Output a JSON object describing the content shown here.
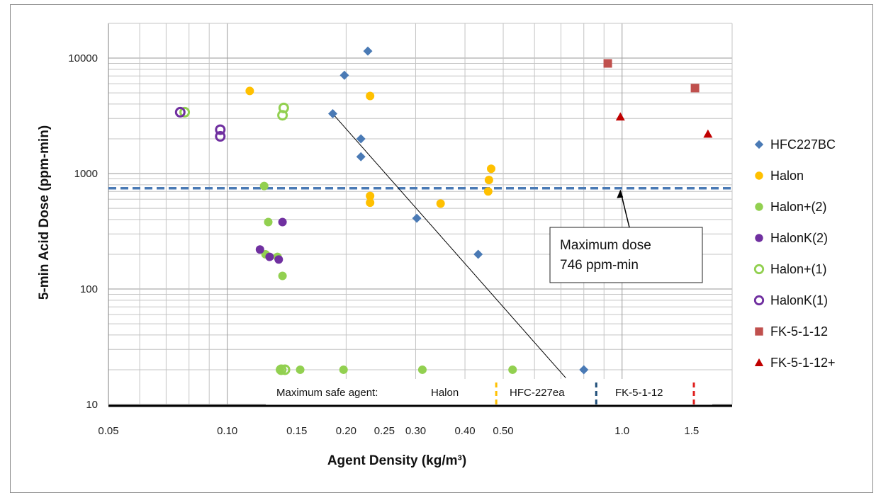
{
  "chart_data": {
    "type": "scatter",
    "title": "",
    "xlabel": "Agent Density (kg/m³)",
    "ylabel": "5-min Acid Dose (ppm-min)",
    "x_scale": "log",
    "y_scale": "log",
    "xlim": [
      0.05,
      1.9
    ],
    "ylim": [
      10,
      20000
    ],
    "x_ticks": [
      {
        "value": 0.05,
        "label": "0.05"
      },
      {
        "value": 0.1,
        "label": "0.10"
      },
      {
        "value": 0.15,
        "label": "0.15"
      },
      {
        "value": 0.2,
        "label": "0.20"
      },
      {
        "value": 0.25,
        "label": "0.25"
      },
      {
        "value": 0.3,
        "label": "0.30"
      },
      {
        "value": 0.4,
        "label": "0.40"
      },
      {
        "value": 0.5,
        "label": "0.50"
      },
      {
        "value": 1.0,
        "label": "1.0"
      },
      {
        "value": 1.5,
        "label": "1.5"
      }
    ],
    "y_ticks": [
      {
        "value": 10,
        "label": "10"
      },
      {
        "value": 100,
        "label": "100"
      },
      {
        "value": 1000,
        "label": "1000"
      },
      {
        "value": 10000,
        "label": "10000"
      }
    ],
    "grid": true,
    "legend_position": "right",
    "series": [
      {
        "name": "HFC227BC",
        "marker": "diamond",
        "filled": true,
        "color": "#4a7ab5",
        "points": [
          [
            0.185,
            3300
          ],
          [
            0.198,
            7100
          ],
          [
            0.218,
            2000
          ],
          [
            0.218,
            1400
          ],
          [
            0.227,
            11500
          ],
          [
            0.302,
            410
          ],
          [
            0.432,
            200
          ],
          [
            0.8,
            20
          ]
        ]
      },
      {
        "name": "Halon",
        "marker": "circle",
        "filled": true,
        "color": "#ffc000",
        "points": [
          [
            0.114,
            5200
          ],
          [
            0.23,
            4700
          ],
          [
            0.23,
            640
          ],
          [
            0.23,
            560
          ],
          [
            0.347,
            550
          ],
          [
            0.458,
            700
          ],
          [
            0.46,
            880
          ],
          [
            0.466,
            1100
          ]
        ]
      },
      {
        "name": "Halon+(2)",
        "marker": "circle",
        "filled": true,
        "color": "#92d050",
        "points": [
          [
            0.124,
            780
          ],
          [
            0.127,
            380
          ],
          [
            0.125,
            200
          ],
          [
            0.134,
            190
          ],
          [
            0.138,
            130
          ],
          [
            0.136,
            20
          ],
          [
            0.153,
            20
          ],
          [
            0.197,
            20
          ],
          [
            0.312,
            20
          ],
          [
            0.528,
            20
          ]
        ]
      },
      {
        "name": "HalonK(2)",
        "marker": "circle",
        "filled": true,
        "color": "#7030a0",
        "points": [
          [
            0.121,
            220
          ],
          [
            0.128,
            190
          ],
          [
            0.135,
            180
          ],
          [
            0.138,
            380
          ]
        ]
      },
      {
        "name": "Halon+(1)",
        "marker": "circle",
        "filled": false,
        "color": "#92d050",
        "points": [
          [
            0.078,
            3400
          ],
          [
            0.138,
            3200
          ],
          [
            0.139,
            3700
          ],
          [
            0.137,
            20
          ],
          [
            0.14,
            20
          ]
        ]
      },
      {
        "name": "HalonK(1)",
        "marker": "circle",
        "filled": false,
        "color": "#7030a0",
        "points": [
          [
            0.076,
            3400
          ],
          [
            0.096,
            2400
          ],
          [
            0.096,
            2100
          ]
        ]
      },
      {
        "name": "FK-5-1-12",
        "marker": "square",
        "filled": true,
        "color": "#c0504d",
        "points": [
          [
            0.92,
            9000
          ],
          [
            1.53,
            5500
          ]
        ]
      },
      {
        "name": "FK-5-1-12+",
        "marker": "triangle",
        "filled": true,
        "color": "#c00000",
        "points": [
          [
            0.99,
            3100
          ],
          [
            1.65,
            2200
          ]
        ]
      }
    ],
    "reference_line": {
      "y": 746,
      "style": "dashed",
      "color": "#4a7ab5"
    },
    "trend_line": {
      "from": [
        0.185,
        3300
      ],
      "to": [
        0.72,
        17
      ],
      "color": "#000000"
    },
    "annotation": {
      "lines": [
        "Maximum dose",
        "746 ppm-min"
      ],
      "arrow_to": [
        0.99,
        746
      ]
    },
    "safe_band": {
      "label": "Maximum safe agent:",
      "items": [
        {
          "name": "Halon",
          "x": 0.48,
          "color": "#ffc000"
        },
        {
          "name": "HFC-227ea",
          "x": 0.86,
          "color": "#1f4e79"
        },
        {
          "name": "FK-5-1-12",
          "x": 1.52,
          "color": "#e0201e"
        }
      ]
    }
  }
}
